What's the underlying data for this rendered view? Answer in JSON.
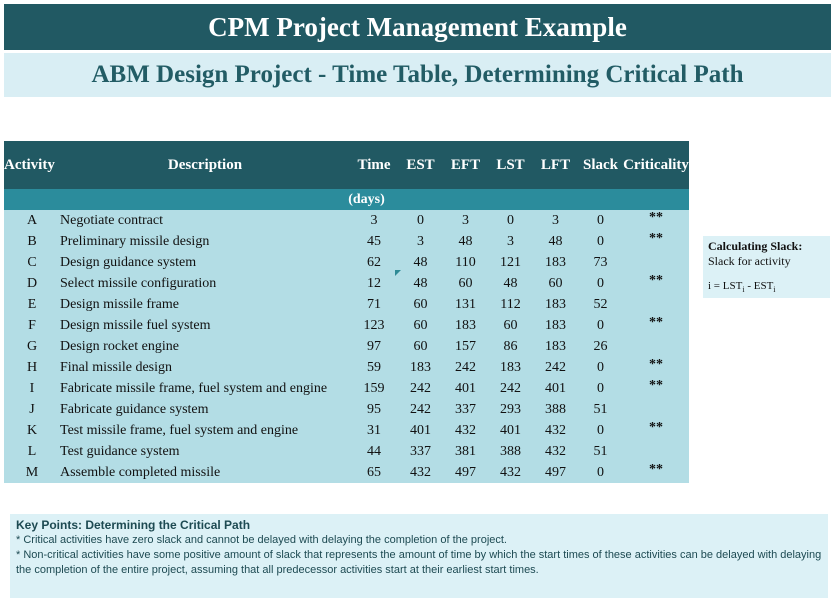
{
  "title": "CPM Project Management Example",
  "subtitle": "ABM Design Project - Time Table, Determining Critical Path",
  "table": {
    "headers": {
      "activity": "Activity",
      "description": "Description",
      "time": "Time",
      "est": "EST",
      "eft": "EFT",
      "lst": "LST",
      "lft": "LFT",
      "slack": "Slack",
      "criticality": "Criticality"
    },
    "units": "(days)",
    "rows": [
      {
        "activity": "A",
        "description": "Negotiate contract",
        "time": "3",
        "est": "0",
        "eft": "3",
        "lst": "0",
        "lft": "3",
        "slack": "0",
        "crit": "**"
      },
      {
        "activity": "B",
        "description": "Preliminary missile design",
        "time": "45",
        "est": "3",
        "eft": "48",
        "lst": "3",
        "lft": "48",
        "slack": "0",
        "crit": "**"
      },
      {
        "activity": "C",
        "description": "Design guidance system",
        "time": "62",
        "est": "48",
        "eft": "110",
        "lst": "121",
        "lft": "183",
        "slack": "73",
        "crit": ""
      },
      {
        "activity": "D",
        "description": "Select missile configuration",
        "time": "12",
        "est": "48",
        "eft": "60",
        "lst": "48",
        "lft": "60",
        "slack": "0",
        "crit": "**"
      },
      {
        "activity": "E",
        "description": "Design missile frame",
        "time": "71",
        "est": "60",
        "eft": "131",
        "lst": "112",
        "lft": "183",
        "slack": "52",
        "crit": ""
      },
      {
        "activity": "F",
        "description": "Design missile fuel system",
        "time": "123",
        "est": "60",
        "eft": "183",
        "lst": "60",
        "lft": "183",
        "slack": "0",
        "crit": "**"
      },
      {
        "activity": "G",
        "description": "Design rocket engine",
        "time": "97",
        "est": "60",
        "eft": "157",
        "lst": "86",
        "lft": "183",
        "slack": "26",
        "crit": ""
      },
      {
        "activity": "H",
        "description": "Final missile design",
        "time": "59",
        "est": "183",
        "eft": "242",
        "lst": "183",
        "lft": "242",
        "slack": "0",
        "crit": "**"
      },
      {
        "activity": "I",
        "description": "Fabricate missile frame, fuel system and engine",
        "time": "159",
        "est": "242",
        "eft": "401",
        "lst": "242",
        "lft": "401",
        "slack": "0",
        "crit": "**"
      },
      {
        "activity": "J",
        "description": "Fabricate guidance system",
        "time": "95",
        "est": "242",
        "eft": "337",
        "lst": "293",
        "lft": "388",
        "slack": "51",
        "crit": ""
      },
      {
        "activity": "K",
        "description": "Test missile frame, fuel system and engine",
        "time": "31",
        "est": "401",
        "eft": "432",
        "lst": "401",
        "lft": "432",
        "slack": "0",
        "crit": "**"
      },
      {
        "activity": "L",
        "description": "Test guidance system",
        "time": "44",
        "est": "337",
        "eft": "381",
        "lst": "388",
        "lft": "432",
        "slack": "51",
        "crit": ""
      },
      {
        "activity": "M",
        "description": "Assemble completed missile",
        "time": "65",
        "est": "432",
        "eft": "497",
        "lst": "432",
        "lft": "497",
        "slack": "0",
        "crit": "**"
      }
    ]
  },
  "slack_note": {
    "title": "Calculating Slack:",
    "line1": "Slack for activity",
    "formula": "i = LSTi - ESTi"
  },
  "key_points": {
    "title": "Key Points: Determining the Critical Path",
    "point1": "* Critical activities have zero slack and cannot be delayed with delaying the completion of the project.",
    "point2": "* Non-critical activities have some positive amount of slack that represents the amount of time by which the start times of these activities can be delayed with delaying the completion of the entire project, assuming that all predecessor activities start at their earliest start times."
  },
  "colors": {
    "title_bg": "#215963",
    "subtitle_bg": "#d9eef4",
    "table_bg": "#b3dde5",
    "units_bg": "#2b8c9c"
  }
}
